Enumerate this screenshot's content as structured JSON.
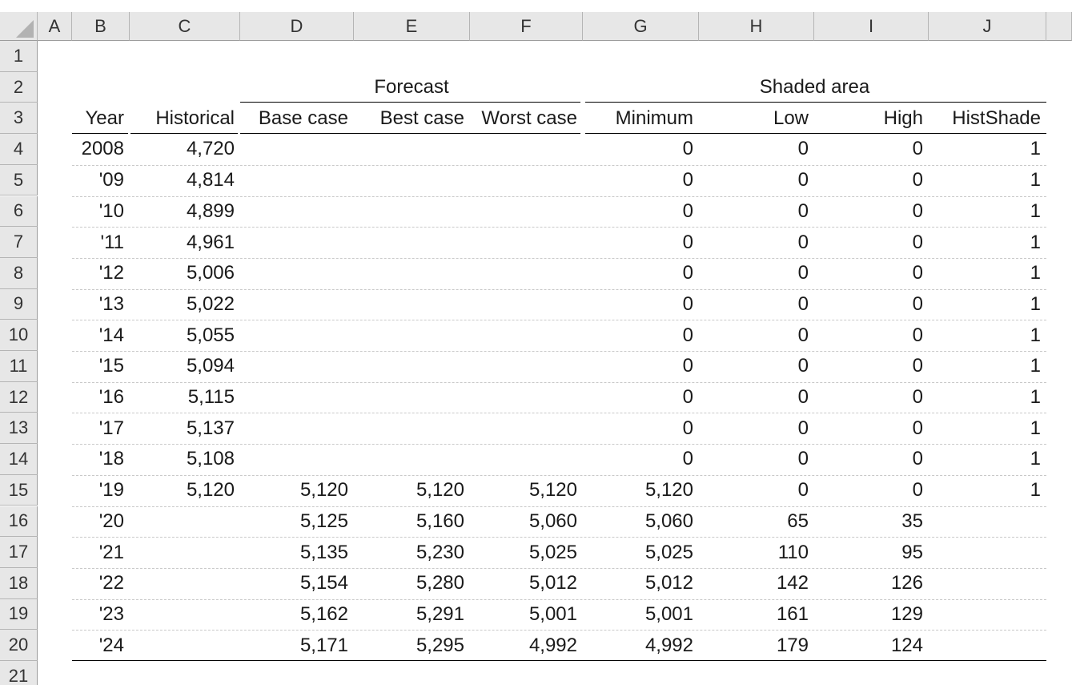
{
  "sheet": {
    "column_headers": [
      "A",
      "B",
      "C",
      "D",
      "E",
      "F",
      "G",
      "H",
      "I",
      "J"
    ],
    "row_headers": [
      "1",
      "2",
      "3",
      "4",
      "5",
      "6",
      "7",
      "8",
      "9",
      "10",
      "11",
      "12",
      "13",
      "14",
      "15",
      "16",
      "17",
      "18",
      "19",
      "20",
      "21"
    ],
    "group_headers": {
      "forecast": "Forecast",
      "shaded_area": "Shaded area"
    },
    "table_headers": {
      "year": "Year",
      "historical": "Historical",
      "base_case": "Base case",
      "best_case": "Best case",
      "worst_case": "Worst case",
      "minimum": "Minimum",
      "low": "Low",
      "high": "High",
      "histshade": "HistShade"
    },
    "rows": [
      {
        "year": "2008",
        "historical": "4,720",
        "min": "0",
        "low": "0",
        "high": "0",
        "shade": "1"
      },
      {
        "year": "'09",
        "historical": "4,814",
        "min": "0",
        "low": "0",
        "high": "0",
        "shade": "1"
      },
      {
        "year": "'10",
        "historical": "4,899",
        "min": "0",
        "low": "0",
        "high": "0",
        "shade": "1"
      },
      {
        "year": "'11",
        "historical": "4,961",
        "min": "0",
        "low": "0",
        "high": "0",
        "shade": "1"
      },
      {
        "year": "'12",
        "historical": "5,006",
        "min": "0",
        "low": "0",
        "high": "0",
        "shade": "1"
      },
      {
        "year": "'13",
        "historical": "5,022",
        "min": "0",
        "low": "0",
        "high": "0",
        "shade": "1"
      },
      {
        "year": "'14",
        "historical": "5,055",
        "min": "0",
        "low": "0",
        "high": "0",
        "shade": "1"
      },
      {
        "year": "'15",
        "historical": "5,094",
        "min": "0",
        "low": "0",
        "high": "0",
        "shade": "1"
      },
      {
        "year": "'16",
        "historical": "5,115",
        "min": "0",
        "low": "0",
        "high": "0",
        "shade": "1"
      },
      {
        "year": "'17",
        "historical": "5,137",
        "min": "0",
        "low": "0",
        "high": "0",
        "shade": "1"
      },
      {
        "year": "'18",
        "historical": "5,108",
        "min": "0",
        "low": "0",
        "high": "0",
        "shade": "1"
      },
      {
        "year": "'19",
        "historical": "5,120",
        "base": "5,120",
        "best": "5,120",
        "worst": "5,120",
        "min": "5,120",
        "low": "0",
        "high": "0",
        "shade": "1"
      },
      {
        "year": "'20",
        "base": "5,125",
        "best": "5,160",
        "worst": "5,060",
        "min": "5,060",
        "low": "65",
        "high": "35"
      },
      {
        "year": "'21",
        "base": "5,135",
        "best": "5,230",
        "worst": "5,025",
        "min": "5,025",
        "low": "110",
        "high": "95"
      },
      {
        "year": "'22",
        "base": "5,154",
        "best": "5,280",
        "worst": "5,012",
        "min": "5,012",
        "low": "142",
        "high": "126"
      },
      {
        "year": "'23",
        "base": "5,162",
        "best": "5,291",
        "worst": "5,001",
        "min": "5,001",
        "low": "161",
        "high": "129"
      },
      {
        "year": "'24",
        "base": "5,171",
        "best": "5,295",
        "worst": "4,992",
        "min": "4,992",
        "low": "179",
        "high": "124"
      }
    ]
  },
  "colors": {
    "header_background": "#e7e7e7",
    "header_border": "#9c9c9c",
    "dashed_gridline": "#c9c9c9",
    "rule_line": "#000000",
    "text": "#1a1a1a"
  }
}
